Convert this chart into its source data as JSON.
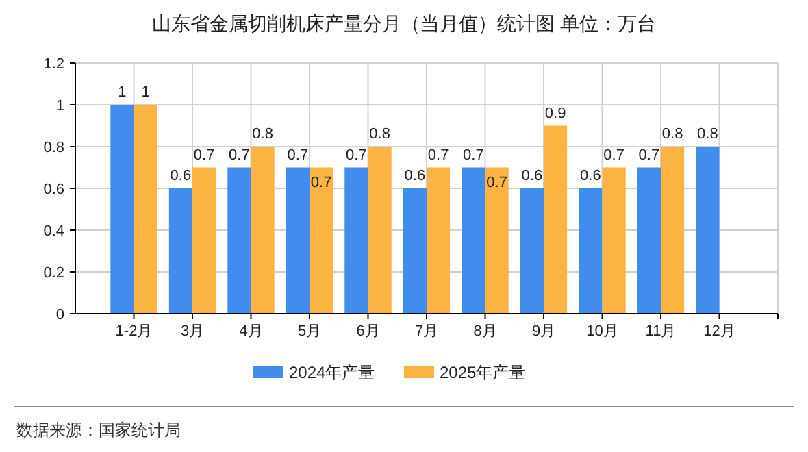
{
  "chart_data": {
    "type": "bar",
    "title": "山东省金属切削机床产量分月（当月值）统计图 单位：万台",
    "categories": [
      "1-2月",
      "3月",
      "4月",
      "5月",
      "6月",
      "7月",
      "8月",
      "9月",
      "10月",
      "11月",
      "12月"
    ],
    "series": [
      {
        "name": "2024年产量",
        "color": "#428ced",
        "values": [
          1,
          0.6,
          0.7,
          0.7,
          0.7,
          0.6,
          0.7,
          0.6,
          0.6,
          0.7,
          0.8
        ]
      },
      {
        "name": "2025年产量",
        "color": "#fbb342",
        "values": [
          1,
          0.7,
          0.8,
          0.7,
          0.8,
          0.7,
          0.7,
          0.9,
          0.7,
          0.8,
          null
        ]
      }
    ],
    "ylim": [
      0,
      1.2
    ],
    "yticks": [
      0,
      0.2,
      0.4,
      0.6,
      0.8,
      1,
      1.2
    ],
    "grid": true,
    "legend": "bottom",
    "data_labels": true,
    "annotations": [
      "数据来源：国家统计局"
    ]
  }
}
